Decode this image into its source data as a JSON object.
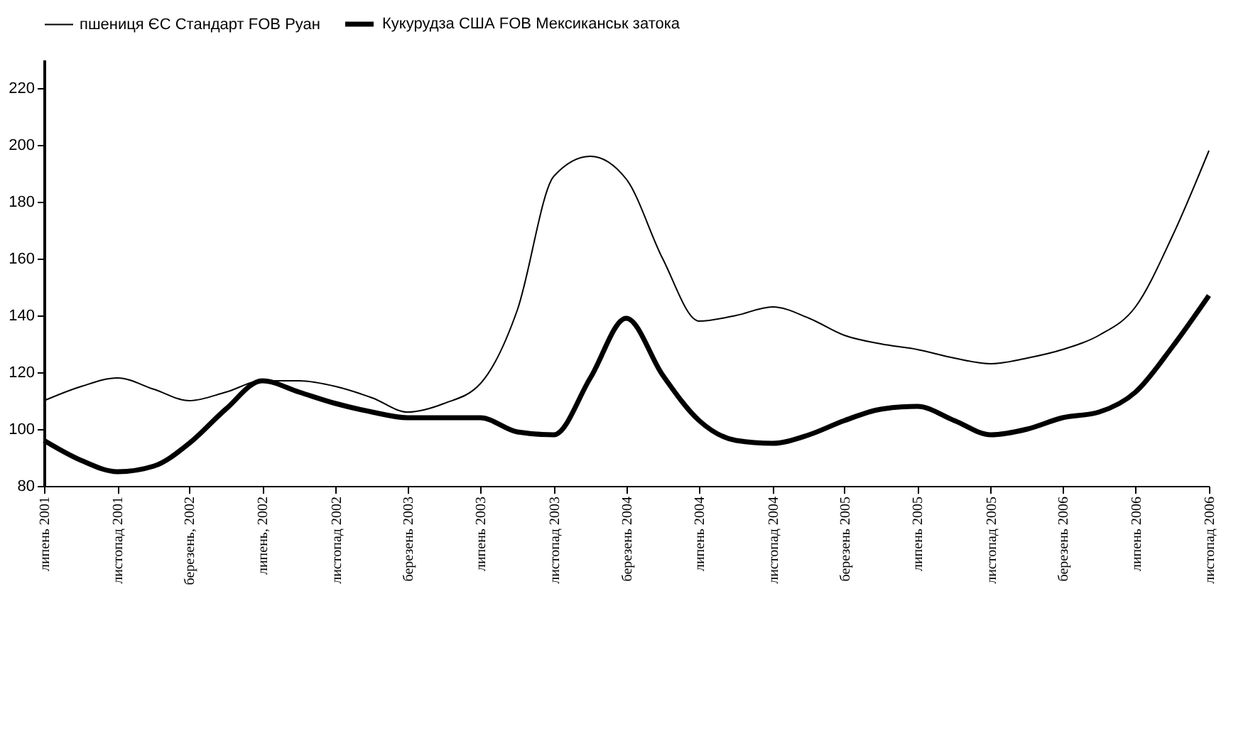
{
  "chart_data": {
    "type": "line",
    "x": [
      "2001-07",
      "2001-09",
      "2001-11",
      "2002-01",
      "2002-03",
      "2002-05",
      "2002-07",
      "2002-09",
      "2002-11",
      "2003-01",
      "2003-03",
      "2003-05",
      "2003-07",
      "2003-09",
      "2003-11",
      "2004-01",
      "2004-03",
      "2004-05",
      "2004-07",
      "2004-09",
      "2004-11",
      "2005-01",
      "2005-03",
      "2005-05",
      "2005-07",
      "2005-09",
      "2005-11",
      "2006-01",
      "2006-03",
      "2006-05",
      "2006-07",
      "2006-09",
      "2006-11"
    ],
    "series": [
      {
        "name": "пшениця ЄС Стандарт FOB Руан",
        "color": "#000000",
        "values": [
          110,
          115,
          118,
          114,
          110,
          113,
          117,
          117,
          115,
          111,
          106,
          109,
          116,
          142,
          189,
          196,
          188,
          160,
          138,
          140,
          143,
          139,
          133,
          130,
          128,
          125,
          123,
          125,
          128,
          133,
          143,
          168,
          198
        ]
      },
      {
        "name": "Кукурудза США FOB  Мексиканськ затока",
        "color": "#000000",
        "values": [
          96,
          89,
          85,
          87,
          95,
          107,
          117,
          113,
          109,
          106,
          104,
          104,
          104,
          99,
          98,
          118,
          139,
          119,
          103,
          96,
          95,
          98,
          103,
          107,
          108,
          103,
          98,
          100,
          104,
          106,
          113,
          129,
          147
        ]
      }
    ],
    "xlim": [
      "2001-07",
      "2006-11"
    ],
    "xticks": [
      {
        "value": "2001-07",
        "label": "липень 2001"
      },
      {
        "value": "2001-11",
        "label": "листопад 2001"
      },
      {
        "value": "2002-03",
        "label": "березень, 2002"
      },
      {
        "value": "2002-07",
        "label": "липень, 2002"
      },
      {
        "value": "2002-11",
        "label": "листопад 2002"
      },
      {
        "value": "2003-03",
        "label": "березень 2003"
      },
      {
        "value": "2003-07",
        "label": "липень 2003"
      },
      {
        "value": "2003-11",
        "label": "листопад 2003"
      },
      {
        "value": "2004-03",
        "label": "березень 2004"
      },
      {
        "value": "2004-07",
        "label": "липень 2004"
      },
      {
        "value": "2004-11",
        "label": "листопад 2004"
      },
      {
        "value": "2005-03",
        "label": "березень 2005"
      },
      {
        "value": "2005-07",
        "label": "липень 2005"
      },
      {
        "value": "2005-11",
        "label": "листопад 2005"
      },
      {
        "value": "2006-03",
        "label": "березень 2006"
      },
      {
        "value": "2006-07",
        "label": "липень 2006"
      },
      {
        "value": "2006-11",
        "label": "листопад 2006"
      }
    ],
    "ylim": [
      80,
      230
    ],
    "yticks": [
      80,
      100,
      120,
      140,
      160,
      180,
      200,
      220
    ],
    "grid": false,
    "legend": "top",
    "marker": "none",
    "line_style": "solid"
  }
}
